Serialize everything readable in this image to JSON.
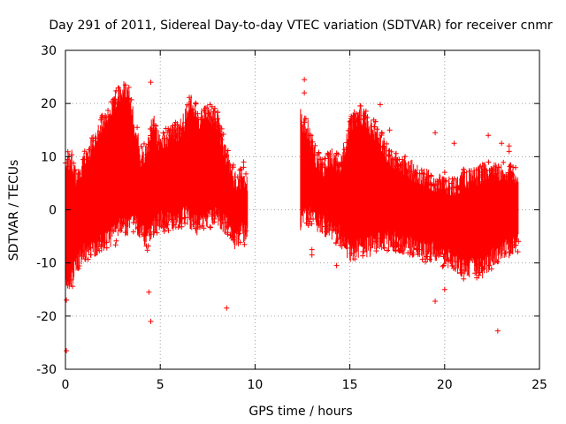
{
  "chart_data": {
    "type": "scatter",
    "title": "Day 291 of 2011, Sidereal Day-to-day VTEC variation (SDTVAR) for receiver cnmr",
    "xlabel": "GPS time / hours",
    "ylabel": "SDTVAR / TECUs",
    "xlim": [
      0,
      25
    ],
    "ylim": [
      -30,
      30
    ],
    "xticks": [
      0,
      5,
      10,
      15,
      20,
      25
    ],
    "yticks": [
      -30,
      -20,
      -10,
      0,
      10,
      20,
      30
    ],
    "grid": true,
    "marker": "+",
    "color": "#ff0000",
    "series": [
      {
        "name": "SDTVAR",
        "envelope": {
          "x": [
            0.0,
            0.3,
            0.6,
            1.0,
            1.5,
            2.0,
            2.5,
            2.8,
            3.0,
            3.3,
            3.7,
            4.0,
            4.3,
            4.6,
            5.0,
            5.5,
            6.0,
            6.3,
            6.6,
            7.0,
            7.5,
            8.0,
            8.5,
            9.0,
            9.3,
            9.6
          ],
          "upper": [
            8,
            10,
            5,
            9,
            13,
            17,
            20,
            22,
            23,
            22,
            15,
            10,
            11,
            17,
            12,
            14,
            15,
            17,
            20,
            17,
            18,
            17,
            10,
            5,
            6,
            5
          ],
          "lower": [
            -14,
            -14,
            -10,
            -8,
            -7,
            -6,
            -5,
            -4,
            -3,
            -3,
            -3,
            -4,
            -6,
            -4,
            -2,
            -2,
            -2,
            -1,
            -2,
            -3,
            -2,
            -1,
            -3,
            -6,
            -4,
            -5
          ]
        },
        "envelope2": {
          "x": [
            12.4,
            12.8,
            13.2,
            13.6,
            14.0,
            14.5,
            15.0,
            15.5,
            16.0,
            16.5,
            17.0,
            17.5,
            18.0,
            18.5,
            19.0,
            19.5,
            20.0,
            20.5,
            21.0,
            21.5,
            22.0,
            22.5,
            23.0,
            23.5,
            23.9
          ],
          "upper": [
            17,
            15,
            10,
            8,
            10,
            8,
            16,
            18,
            16,
            14,
            10,
            9,
            8,
            7,
            6,
            5,
            5,
            4,
            6,
            6,
            7,
            7,
            7,
            7,
            6
          ],
          "lower": [
            -2,
            -1,
            -2,
            -3,
            -4,
            -5,
            -8,
            -7,
            -7,
            -6,
            -6,
            -6,
            -7,
            -7,
            -8,
            -8,
            -9,
            -10,
            -11,
            -11,
            -11,
            -9,
            -8,
            -7,
            -6
          ]
        },
        "outliers": [
          [
            0.05,
            -26.5
          ],
          [
            0.05,
            -17
          ],
          [
            4.5,
            24
          ],
          [
            4.5,
            -21
          ],
          [
            4.4,
            -15.5
          ],
          [
            8.5,
            -18.5
          ],
          [
            9.4,
            9
          ],
          [
            9.4,
            8
          ],
          [
            12.6,
            24.5
          ],
          [
            12.6,
            22
          ],
          [
            13.0,
            -7.5
          ],
          [
            13.0,
            -8.5
          ],
          [
            14.3,
            -10.5
          ],
          [
            16.6,
            19.8
          ],
          [
            17.1,
            15
          ],
          [
            19.5,
            14.5
          ],
          [
            19.5,
            -17.2
          ],
          [
            20.5,
            12.5
          ],
          [
            21.0,
            -13
          ],
          [
            22.3,
            14
          ],
          [
            22.8,
            -22.8
          ],
          [
            23.0,
            12.5
          ],
          [
            23.4,
            12
          ],
          [
            23.4,
            11
          ],
          [
            20.0,
            -15
          ]
        ]
      }
    ]
  }
}
